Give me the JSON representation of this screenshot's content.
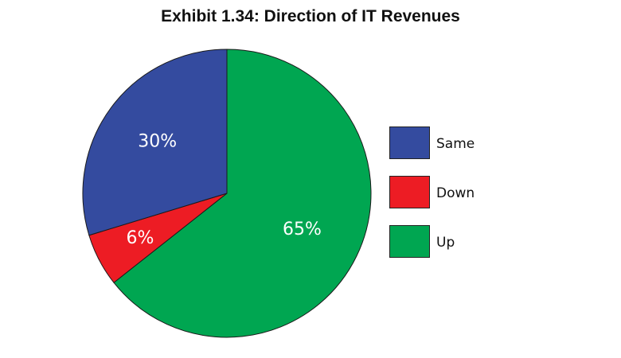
{
  "chart_data": {
    "type": "pie",
    "title": "Exhibit 1.34: Direction of IT Revenues",
    "slices": [
      {
        "name": "Up",
        "value": 65,
        "label": "65%",
        "color": "#00a651"
      },
      {
        "name": "Down",
        "value": 6,
        "label": "6%",
        "color": "#ed1c24"
      },
      {
        "name": "Same",
        "value": 30,
        "label": "30%",
        "color": "#344b9f"
      }
    ],
    "legend": {
      "placement": "right",
      "items": [
        {
          "name": "Same",
          "color": "#344b9f"
        },
        {
          "name": "Down",
          "color": "#ed1c24"
        },
        {
          "name": "Up",
          "color": "#00a651"
        }
      ]
    }
  }
}
